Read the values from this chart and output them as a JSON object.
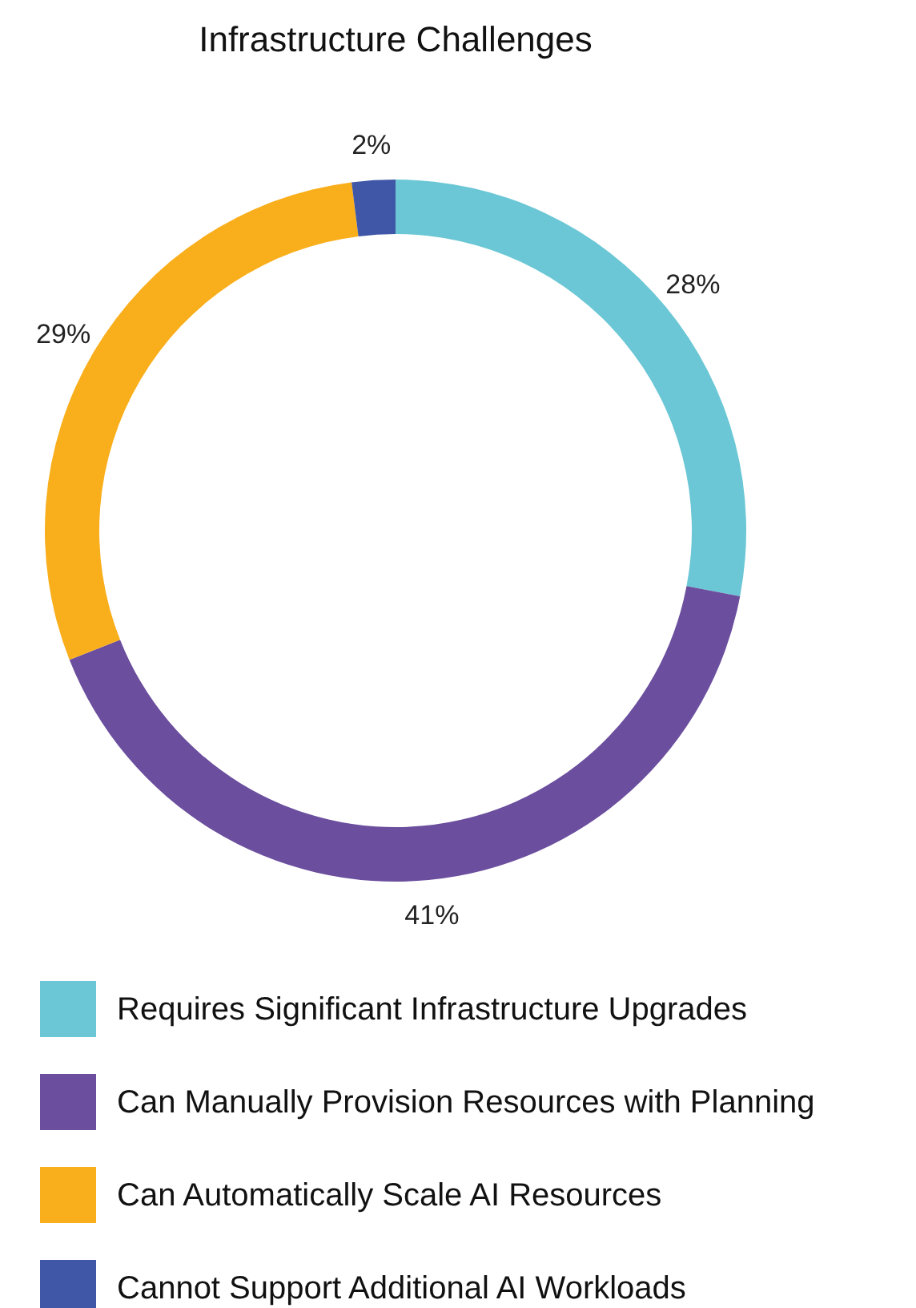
{
  "chart_data": {
    "type": "donut",
    "title": "Infrastructure Challenges",
    "categories": [
      "Requires Significant Infrastructure Upgrades",
      "Can Manually Provision Resources with Planning",
      "Can Automatically Scale AI Resources",
      "Cannot Support Additional AI Workloads"
    ],
    "values": [
      28,
      41,
      29,
      2
    ],
    "colors": [
      "#6bc7d5",
      "#6b4f9e",
      "#f9ae1b",
      "#3f57a6"
    ],
    "value_labels": [
      "28%",
      "41%",
      "29%",
      "2%"
    ],
    "legend": "bottom"
  }
}
